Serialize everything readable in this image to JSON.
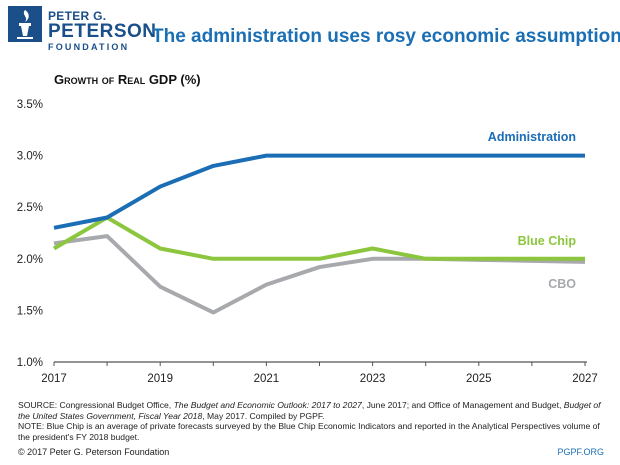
{
  "header": {
    "logo_line1": "PETER G.",
    "logo_line2": "PETERSON",
    "logo_line3": "FOUNDATION",
    "headline": "The administration uses rosy economic assumptions"
  },
  "colors": {
    "brand": "#1a4f8a",
    "administration": "#1b6db5",
    "blue_chip": "#8cc63e",
    "cbo": "#a7a9ac",
    "axis": "#555555"
  },
  "chart_data": {
    "type": "line",
    "title": "Growth of Real GDP (%)",
    "xlabel": "",
    "ylabel": "",
    "x": [
      2017,
      2018,
      2019,
      2020,
      2021,
      2022,
      2023,
      2024,
      2025,
      2026,
      2027
    ],
    "xlim": [
      2017,
      2027
    ],
    "ylim": [
      1.0,
      3.5
    ],
    "xticks": [
      2017,
      2019,
      2021,
      2023,
      2025,
      2027
    ],
    "xtick_labels": [
      "2017",
      "2019",
      "2021",
      "2023",
      "2025",
      "2027"
    ],
    "yticks": [
      1.0,
      1.5,
      2.0,
      2.5,
      3.0,
      3.5
    ],
    "ytick_labels": [
      "1.0%",
      "1.5%",
      "2.0%",
      "2.5%",
      "3.0%",
      "3.5%"
    ],
    "series": [
      {
        "name": "Administration",
        "color": "#1b6db5",
        "values": [
          2.3,
          2.4,
          2.7,
          2.9,
          3.0,
          3.0,
          3.0,
          3.0,
          3.0,
          3.0,
          3.0
        ]
      },
      {
        "name": "Blue Chip",
        "color": "#8cc63e",
        "values": [
          2.1,
          2.4,
          2.1,
          2.0,
          2.0,
          2.0,
          2.1,
          2.0,
          2.0,
          2.0,
          2.0
        ]
      },
      {
        "name": "CBO",
        "color": "#a7a9ac",
        "values": [
          2.15,
          2.22,
          1.73,
          1.48,
          1.75,
          1.92,
          2.0,
          2.0,
          1.99,
          1.98,
          1.97
        ]
      }
    ]
  },
  "notes": {
    "source_prefix": "SOURCE: Congressional Budget Office, ",
    "source_title1": "The Budget and Economic Outlook: 2017 to 2027",
    "source_mid": ", June 2017; and Office of Management and Budget, ",
    "source_title2": "Budget of the United States Government, Fiscal Year 2018",
    "source_suffix": ", May 2017. Compiled by PGPF.",
    "note": "NOTE: Blue Chip is an average of private forecasts surveyed by the Blue Chip Economic Indicators and reported in the Analytical Perspectives volume of the president's FY 2018 budget."
  },
  "footer": {
    "copyright": "© 2017 Peter G. Peterson Foundation",
    "site": "PGPF.ORG"
  }
}
